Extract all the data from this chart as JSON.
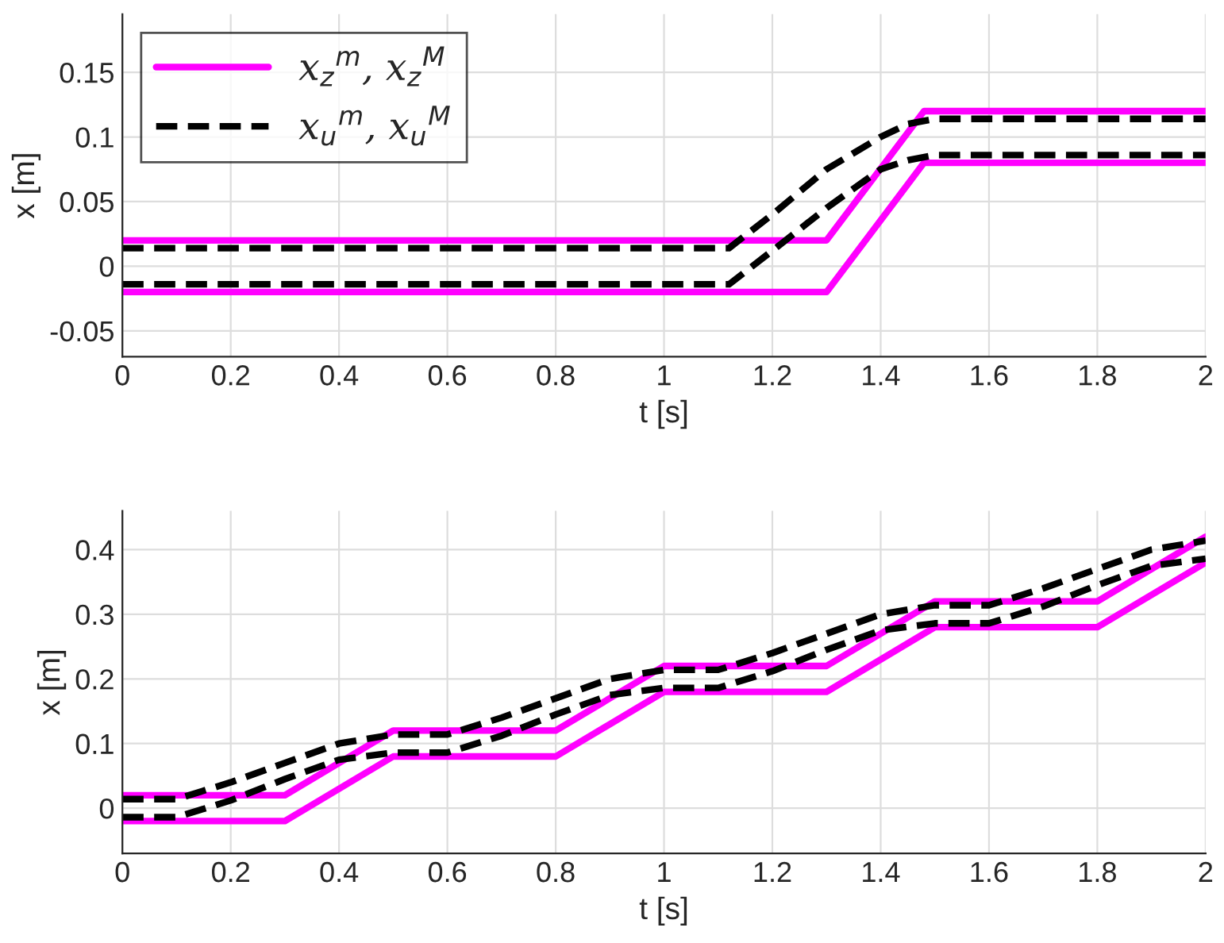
{
  "chart_data": [
    {
      "type": "line",
      "xlabel": "t [s]",
      "ylabel": "x [m]",
      "xlim": [
        0,
        2
      ],
      "ylim": [
        -0.07,
        0.195
      ],
      "xticks": [
        0,
        0.2,
        0.4,
        0.6,
        0.8,
        1,
        1.2,
        1.4,
        1.6,
        1.8,
        2
      ],
      "yticks": [
        -0.05,
        0,
        0.05,
        0.1,
        0.15
      ],
      "grid": true,
      "legend": "top left",
      "series": [
        {
          "name": "x$_{z}$$^{m}$, x$_{z}$$^{M}$",
          "color": "#ff00ff",
          "line_style": "solid",
          "x": [
            0,
            1.3,
            1.48,
            2
          ],
          "values": [
            0.02,
            0.02,
            0.12,
            0.12
          ]
        },
        {
          "color": "#ff00ff",
          "line_style": "solid",
          "x": [
            0,
            1.3,
            1.48,
            2
          ],
          "values": [
            -0.02,
            -0.02,
            0.08,
            0.08
          ]
        },
        {
          "name": "x$_{u}$$^{m}$, x$_{u}$$^{M}$",
          "color": "#000000",
          "line_style": "dashed",
          "x": [
            0,
            1.12,
            1.2,
            1.3,
            1.4,
            1.45,
            1.5,
            2
          ],
          "values": [
            0.014,
            0.014,
            0.04,
            0.075,
            0.1,
            0.11,
            0.114,
            0.114
          ]
        },
        {
          "color": "#000000",
          "line_style": "dashed",
          "x": [
            0,
            1.12,
            1.2,
            1.3,
            1.4,
            1.45,
            1.5,
            2
          ],
          "values": [
            -0.014,
            -0.014,
            0.012,
            0.045,
            0.075,
            0.082,
            0.086,
            0.086
          ]
        }
      ]
    },
    {
      "type": "line",
      "xlabel": "t [s]",
      "ylabel": "x [m]",
      "xlim": [
        0,
        2
      ],
      "ylim": [
        -0.07,
        0.46
      ],
      "xticks": [
        0,
        0.2,
        0.4,
        0.6,
        0.8,
        1,
        1.2,
        1.4,
        1.6,
        1.8,
        2
      ],
      "yticks": [
        0,
        0.1,
        0.2,
        0.3,
        0.4
      ],
      "grid": true,
      "series": [
        {
          "color": "#ff00ff",
          "line_style": "solid",
          "x": [
            0,
            0.3,
            0.5,
            0.8,
            1.0,
            1.3,
            1.5,
            1.8,
            2.0
          ],
          "values": [
            0.02,
            0.02,
            0.12,
            0.12,
            0.22,
            0.22,
            0.32,
            0.32,
            0.42
          ]
        },
        {
          "color": "#ff00ff",
          "line_style": "solid",
          "x": [
            0,
            0.3,
            0.5,
            0.8,
            1.0,
            1.3,
            1.5,
            1.8,
            2.0
          ],
          "values": [
            -0.02,
            -0.02,
            0.08,
            0.08,
            0.18,
            0.18,
            0.28,
            0.28,
            0.38
          ]
        },
        {
          "color": "#000000",
          "line_style": "dashed",
          "x": [
            0,
            0.1,
            0.2,
            0.3,
            0.4,
            0.5,
            0.6,
            0.7,
            0.8,
            0.9,
            1.0,
            1.1,
            1.2,
            1.3,
            1.4,
            1.5,
            1.6,
            1.7,
            1.8,
            1.9,
            2.0
          ],
          "values": [
            0.014,
            0.014,
            0.04,
            0.07,
            0.1,
            0.114,
            0.114,
            0.14,
            0.17,
            0.2,
            0.214,
            0.214,
            0.24,
            0.27,
            0.3,
            0.314,
            0.314,
            0.34,
            0.37,
            0.4,
            0.414
          ]
        },
        {
          "color": "#000000",
          "line_style": "dashed",
          "x": [
            0,
            0.1,
            0.2,
            0.3,
            0.4,
            0.5,
            0.6,
            0.7,
            0.8,
            0.9,
            1.0,
            1.1,
            1.2,
            1.3,
            1.4,
            1.5,
            1.6,
            1.7,
            1.8,
            1.9,
            2.0
          ],
          "values": [
            -0.014,
            -0.014,
            0.012,
            0.045,
            0.075,
            0.086,
            0.086,
            0.112,
            0.145,
            0.175,
            0.186,
            0.186,
            0.212,
            0.245,
            0.275,
            0.286,
            0.286,
            0.312,
            0.345,
            0.375,
            0.386
          ]
        }
      ]
    }
  ]
}
